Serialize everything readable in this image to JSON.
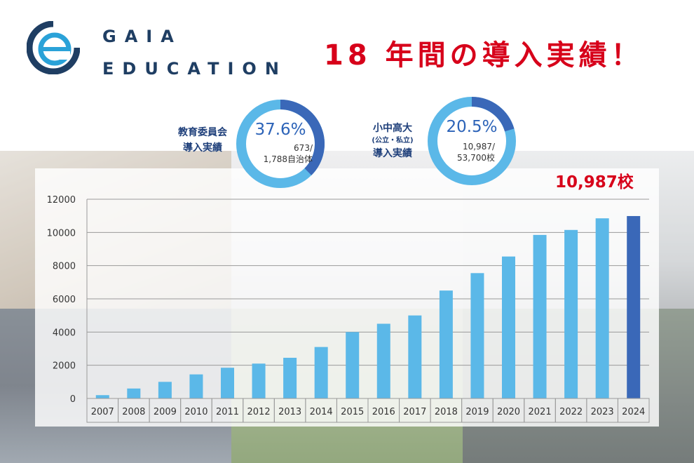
{
  "header": {
    "brand_line1": "GAIA",
    "brand_line2": "EDUCATION",
    "headline": "18 年間の導入実績！"
  },
  "donuts": [
    {
      "label_lines": [
        "教育委員会",
        "導入実績"
      ],
      "percent": "37.6%",
      "fraction_line1": "673/",
      "fraction_line2": "1,788自治体",
      "share": 0.376
    },
    {
      "label_lines": [
        "小中高大",
        "(公立・私立)",
        "導入実績"
      ],
      "percent": "20.5%",
      "fraction_line1": "10,987/",
      "fraction_line2": "53,700校",
      "share": 0.205
    }
  ],
  "colors": {
    "brand_navy": "#1f3e63",
    "headline_red": "#d7001a",
    "bar_light": "#5bb8e8",
    "bar_highlight": "#3a68b8",
    "donut_dark": "#3a68b8",
    "donut_light": "#5bb8e8"
  },
  "chart_data": {
    "type": "bar",
    "categories": [
      "2007",
      "2008",
      "2009",
      "2010",
      "2011",
      "2012",
      "2013",
      "2014",
      "2015",
      "2016",
      "2017",
      "2018",
      "2019",
      "2020",
      "2021",
      "2022",
      "2023",
      "2024"
    ],
    "values": [
      200,
      600,
      1000,
      1450,
      1850,
      2100,
      2450,
      3100,
      4000,
      4500,
      5000,
      6500,
      7550,
      8550,
      9850,
      10150,
      10850,
      10987
    ],
    "ylim": [
      0,
      12000
    ],
    "yticks": [
      0,
      2000,
      4000,
      6000,
      8000,
      10000,
      12000
    ],
    "highlight_index": 17,
    "highlight_label": "10,987校",
    "grid": true,
    "legend": "none"
  }
}
